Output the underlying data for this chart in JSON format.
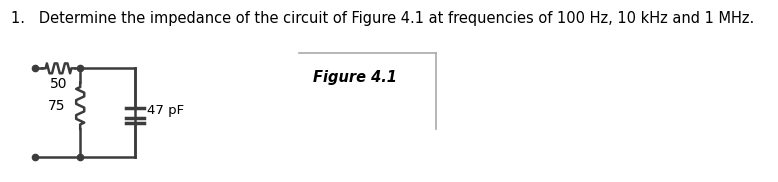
{
  "title_text": "1.   Determine the impedance of the circuit of Figure 4.1 at frequencies of 100 Hz, 10 kHz and 1 MHz.",
  "figure_label": "Figure 4.1",
  "bg_color": "#ffffff",
  "circuit": {
    "series_resistor_label": "50",
    "shunt_resistor_label": "75",
    "capacitor_label": "47 pF"
  },
  "title_fontsize": 10.5,
  "figure_label_fontsize": 10.5
}
